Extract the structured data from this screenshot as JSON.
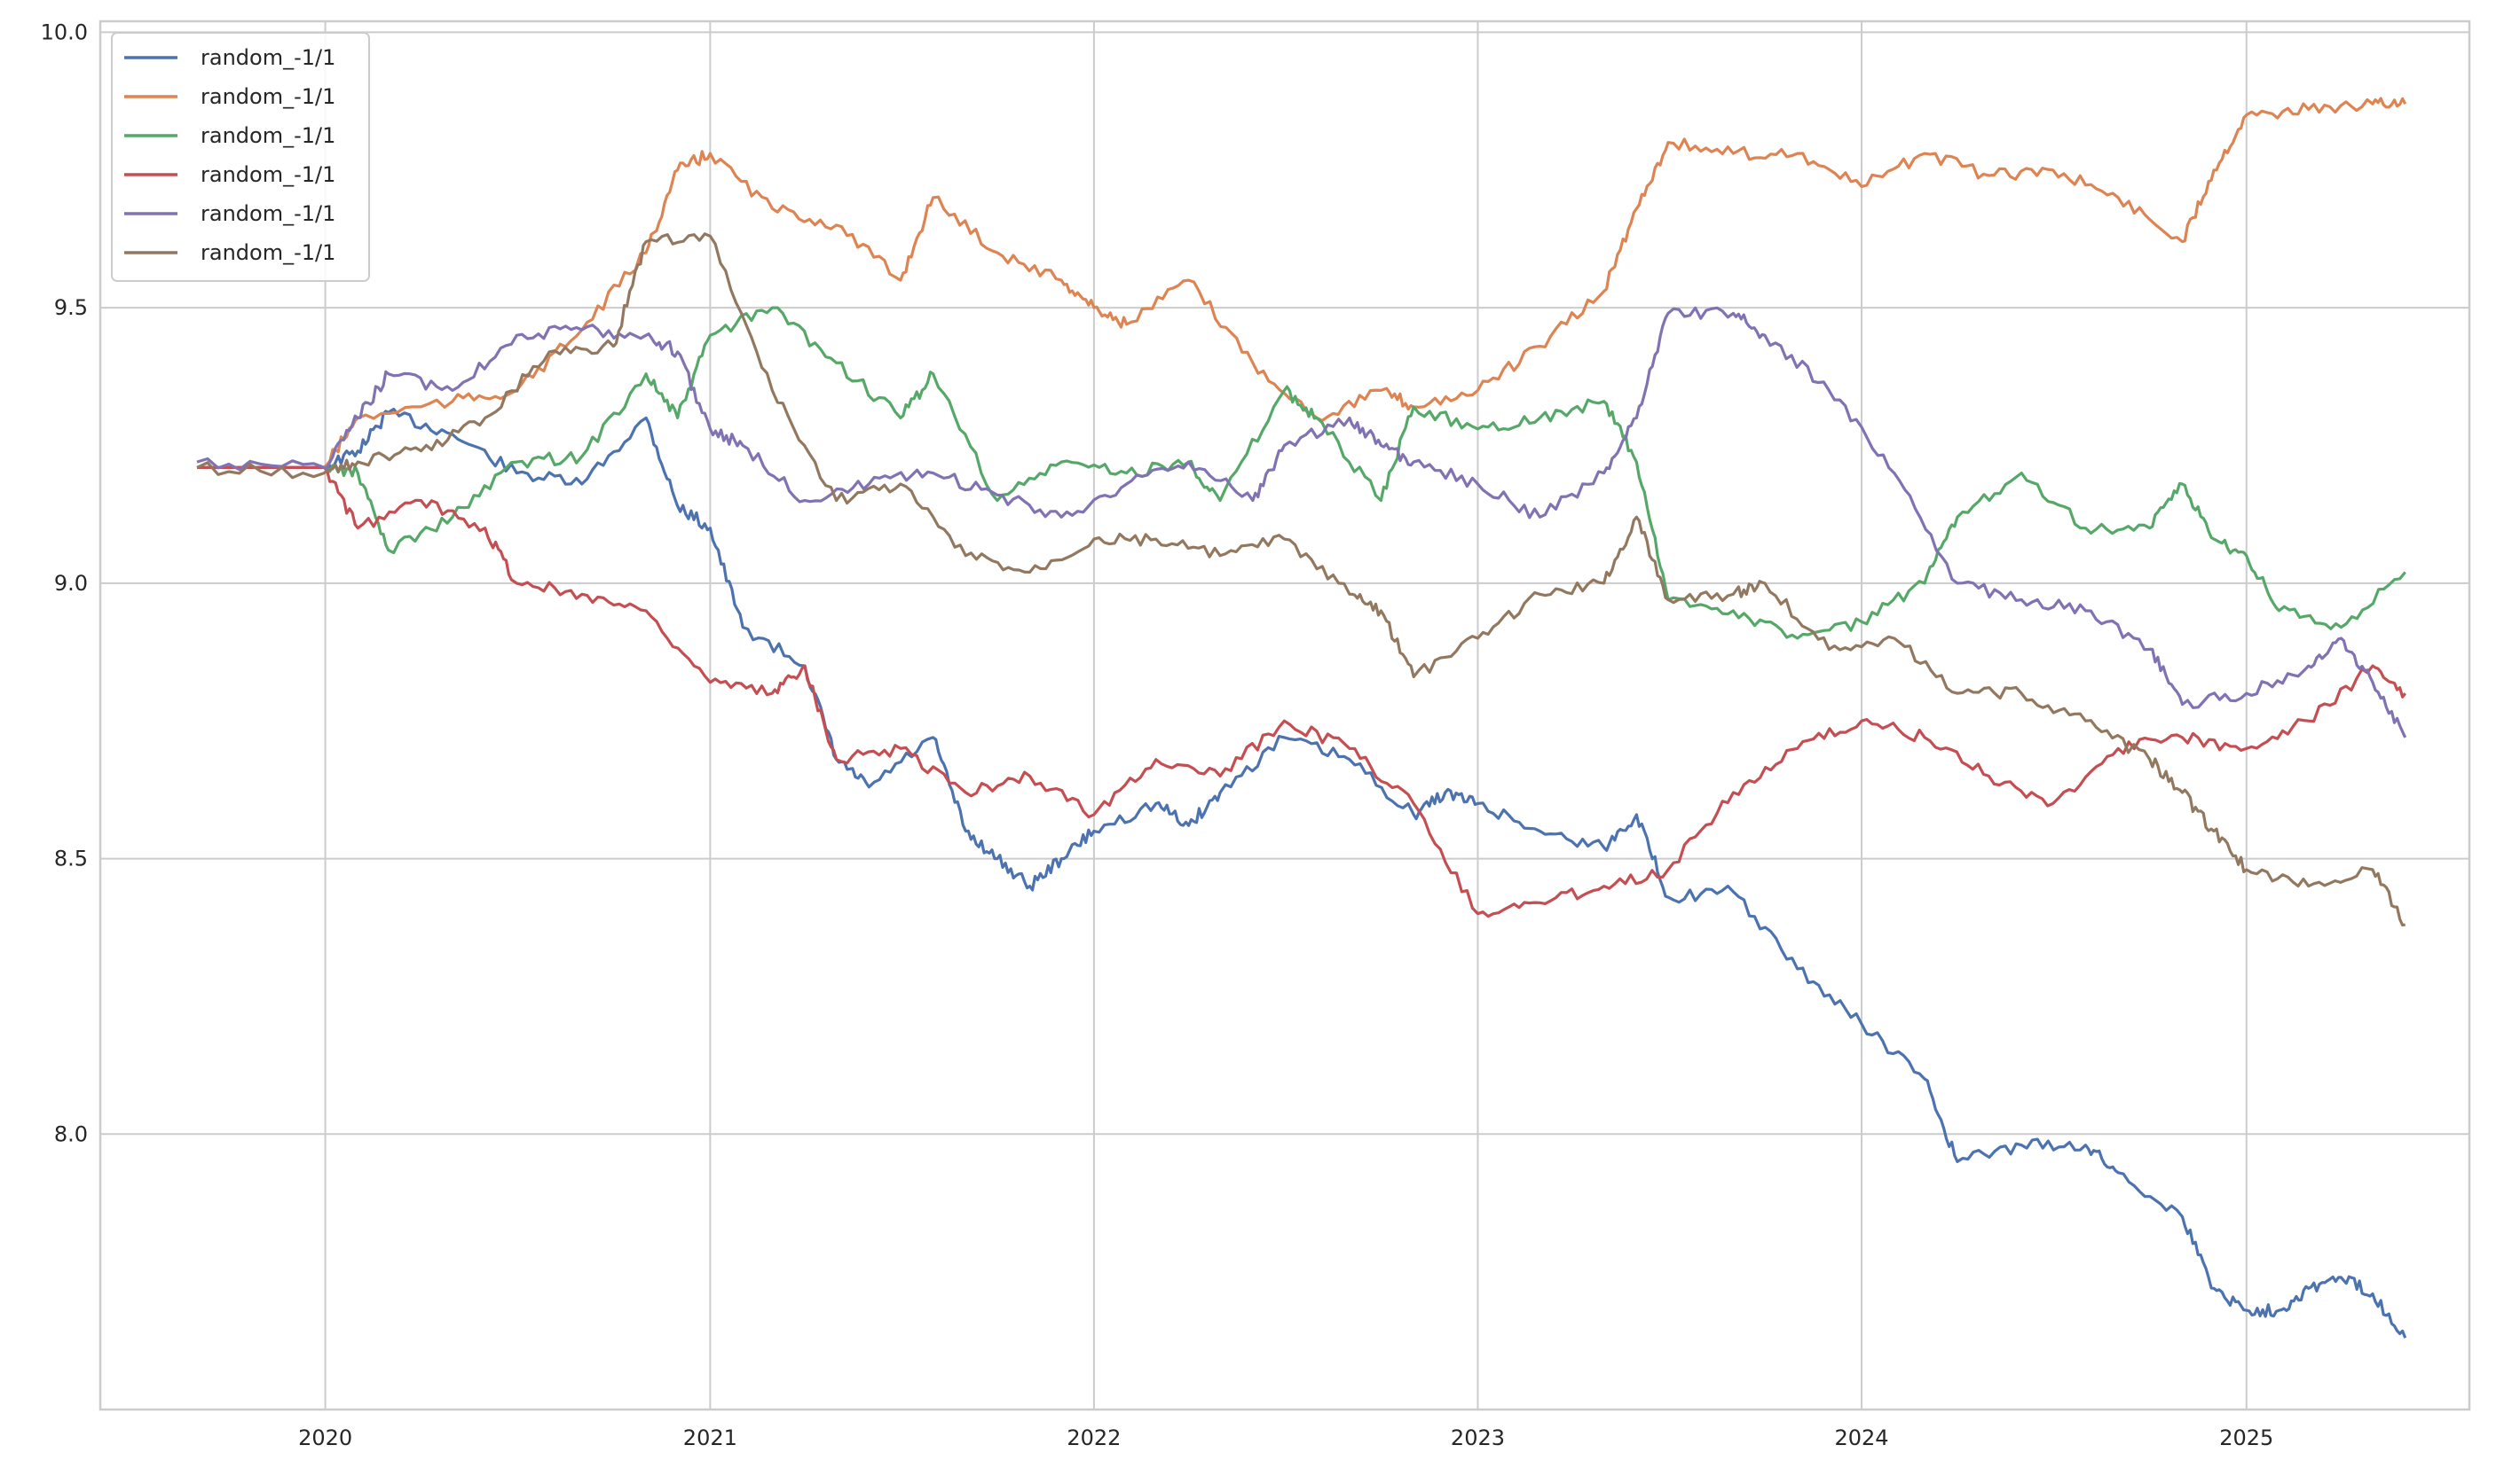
{
  "chart_data": {
    "type": "line",
    "title": "",
    "xlabel": "",
    "ylabel": "",
    "x_range": [
      "2019-06-01",
      "2025-08-01"
    ],
    "ylim": [
      7.5,
      10.02
    ],
    "x_ticks": [
      "2020",
      "2021",
      "2022",
      "2023",
      "2024",
      "2025"
    ],
    "y_ticks": [
      "8.0",
      "8.5",
      "9.0",
      "9.5",
      "10.0"
    ],
    "grid": true,
    "legend_position": "top-left",
    "series": [
      {
        "name": "random_-1/1",
        "color": "#4c72b0",
        "points": [
          [
            "2019-09-01",
            9.21
          ],
          [
            "2019-12-31",
            9.21
          ],
          [
            "2020-02-01",
            9.24
          ],
          [
            "2020-03-01",
            9.31
          ],
          [
            "2020-05-01",
            9.27
          ],
          [
            "2020-07-01",
            9.2
          ],
          [
            "2020-09-01",
            9.18
          ],
          [
            "2020-11-01",
            9.3
          ],
          [
            "2020-12-01",
            9.14
          ],
          [
            "2021-01-01",
            9.1
          ],
          [
            "2021-02-01",
            8.92
          ],
          [
            "2021-04-01",
            8.85
          ],
          [
            "2021-05-01",
            8.68
          ],
          [
            "2021-06-01",
            8.63
          ],
          [
            "2021-08-01",
            8.72
          ],
          [
            "2021-09-01",
            8.55
          ],
          [
            "2021-10-01",
            8.5
          ],
          [
            "2021-11-01",
            8.45
          ],
          [
            "2021-12-01",
            8.5
          ],
          [
            "2022-01-01",
            8.55
          ],
          [
            "2022-03-01",
            8.6
          ],
          [
            "2022-04-01",
            8.56
          ],
          [
            "2022-05-01",
            8.62
          ],
          [
            "2022-07-01",
            8.72
          ],
          [
            "2022-09-01",
            8.68
          ],
          [
            "2022-11-01",
            8.58
          ],
          [
            "2022-12-01",
            8.62
          ],
          [
            "2023-01-01",
            8.6
          ],
          [
            "2023-03-01",
            8.55
          ],
          [
            "2023-05-01",
            8.52
          ],
          [
            "2023-06-01",
            8.58
          ],
          [
            "2023-07-01",
            8.43
          ],
          [
            "2023-09-01",
            8.44
          ],
          [
            "2023-11-01",
            8.3
          ],
          [
            "2024-01-01",
            8.2
          ],
          [
            "2024-03-01",
            8.1
          ],
          [
            "2024-04-01",
            7.95
          ],
          [
            "2024-06-01",
            7.98
          ],
          [
            "2024-08-01",
            7.98
          ],
          [
            "2024-09-01",
            7.93
          ],
          [
            "2024-11-01",
            7.85
          ],
          [
            "2024-12-01",
            7.72
          ],
          [
            "2025-01-01",
            7.68
          ],
          [
            "2025-02-01",
            7.68
          ],
          [
            "2025-03-01",
            7.72
          ],
          [
            "2025-04-01",
            7.74
          ],
          [
            "2025-05-01",
            7.71
          ],
          [
            "2025-06-01",
            7.63
          ]
        ]
      },
      {
        "name": "random_-1/1",
        "color": "#dd8452",
        "points": [
          [
            "2019-09-01",
            9.21
          ],
          [
            "2019-12-31",
            9.21
          ],
          [
            "2020-02-01",
            9.3
          ],
          [
            "2020-05-01",
            9.33
          ],
          [
            "2020-07-01",
            9.35
          ],
          [
            "2020-09-01",
            9.46
          ],
          [
            "2020-11-01",
            9.6
          ],
          [
            "2020-12-01",
            9.75
          ],
          [
            "2021-01-01",
            9.78
          ],
          [
            "2021-03-01",
            9.68
          ],
          [
            "2021-05-01",
            9.65
          ],
          [
            "2021-07-01",
            9.55
          ],
          [
            "2021-08-01",
            9.7
          ],
          [
            "2021-10-01",
            9.6
          ],
          [
            "2021-12-01",
            9.55
          ],
          [
            "2022-01-01",
            9.5
          ],
          [
            "2022-02-01",
            9.47
          ],
          [
            "2022-04-01",
            9.55
          ],
          [
            "2022-06-01",
            9.4
          ],
          [
            "2022-08-01",
            9.3
          ],
          [
            "2022-10-01",
            9.35
          ],
          [
            "2022-11-01",
            9.32
          ],
          [
            "2023-01-01",
            9.35
          ],
          [
            "2023-03-01",
            9.43
          ],
          [
            "2023-05-01",
            9.53
          ],
          [
            "2023-06-01",
            9.68
          ],
          [
            "2023-07-01",
            9.8
          ],
          [
            "2023-09-01",
            9.78
          ],
          [
            "2023-11-01",
            9.78
          ],
          [
            "2024-01-01",
            9.72
          ],
          [
            "2024-03-01",
            9.78
          ],
          [
            "2024-05-01",
            9.74
          ],
          [
            "2024-07-01",
            9.75
          ],
          [
            "2024-09-01",
            9.7
          ],
          [
            "2024-11-01",
            9.62
          ],
          [
            "2024-12-01",
            9.75
          ],
          [
            "2025-01-01",
            9.85
          ],
          [
            "2025-03-01",
            9.86
          ],
          [
            "2025-05-01",
            9.87
          ],
          [
            "2025-06-01",
            9.87
          ]
        ]
      },
      {
        "name": "random_-1/1",
        "color": "#55a868",
        "points": [
          [
            "2019-09-01",
            9.21
          ],
          [
            "2019-12-31",
            9.21
          ],
          [
            "2020-02-01",
            9.2
          ],
          [
            "2020-03-01",
            9.06
          ],
          [
            "2020-05-01",
            9.12
          ],
          [
            "2020-07-01",
            9.22
          ],
          [
            "2020-09-01",
            9.23
          ],
          [
            "2020-11-01",
            9.38
          ],
          [
            "2020-12-01",
            9.3
          ],
          [
            "2021-01-01",
            9.45
          ],
          [
            "2021-03-01",
            9.5
          ],
          [
            "2021-05-01",
            9.4
          ],
          [
            "2021-07-01",
            9.3
          ],
          [
            "2021-08-01",
            9.38
          ],
          [
            "2021-10-01",
            9.15
          ],
          [
            "2021-12-01",
            9.22
          ],
          [
            "2022-02-01",
            9.2
          ],
          [
            "2022-04-01",
            9.22
          ],
          [
            "2022-05-01",
            9.15
          ],
          [
            "2022-07-01",
            9.35
          ],
          [
            "2022-08-01",
            9.3
          ],
          [
            "2022-10-01",
            9.15
          ],
          [
            "2022-11-01",
            9.32
          ],
          [
            "2023-01-01",
            9.28
          ],
          [
            "2023-03-01",
            9.3
          ],
          [
            "2023-05-01",
            9.33
          ],
          [
            "2023-06-01",
            9.22
          ],
          [
            "2023-07-01",
            8.97
          ],
          [
            "2023-09-01",
            8.95
          ],
          [
            "2023-11-01",
            8.9
          ],
          [
            "2024-01-01",
            8.93
          ],
          [
            "2024-03-01",
            9.0
          ],
          [
            "2024-04-01",
            9.12
          ],
          [
            "2024-06-01",
            9.2
          ],
          [
            "2024-08-01",
            9.1
          ],
          [
            "2024-10-01",
            9.1
          ],
          [
            "2024-11-01",
            9.18
          ],
          [
            "2024-12-01",
            9.08
          ],
          [
            "2025-01-01",
            9.05
          ],
          [
            "2025-02-01",
            8.95
          ],
          [
            "2025-04-01",
            8.92
          ],
          [
            "2025-06-01",
            9.02
          ]
        ]
      },
      {
        "name": "random_-1/1",
        "color": "#c44e52",
        "points": [
          [
            "2019-09-01",
            9.21
          ],
          [
            "2019-12-31",
            9.21
          ],
          [
            "2020-02-01",
            9.1
          ],
          [
            "2020-04-01",
            9.15
          ],
          [
            "2020-06-01",
            9.1
          ],
          [
            "2020-07-01",
            9.0
          ],
          [
            "2020-09-01",
            8.98
          ],
          [
            "2020-11-01",
            8.95
          ],
          [
            "2021-01-01",
            8.82
          ],
          [
            "2021-03-01",
            8.8
          ],
          [
            "2021-04-01",
            8.85
          ],
          [
            "2021-05-01",
            8.68
          ],
          [
            "2021-07-01",
            8.7
          ],
          [
            "2021-09-01",
            8.62
          ],
          [
            "2021-11-01",
            8.65
          ],
          [
            "2022-01-01",
            8.58
          ],
          [
            "2022-03-01",
            8.68
          ],
          [
            "2022-05-01",
            8.65
          ],
          [
            "2022-07-01",
            8.75
          ],
          [
            "2022-09-01",
            8.7
          ],
          [
            "2022-11-01",
            8.6
          ],
          [
            "2023-01-01",
            8.4
          ],
          [
            "2023-03-01",
            8.42
          ],
          [
            "2023-05-01",
            8.45
          ],
          [
            "2023-07-01",
            8.48
          ],
          [
            "2023-09-01",
            8.62
          ],
          [
            "2023-11-01",
            8.7
          ],
          [
            "2024-01-01",
            8.75
          ],
          [
            "2024-03-01",
            8.72
          ],
          [
            "2024-05-01",
            8.65
          ],
          [
            "2024-07-01",
            8.6
          ],
          [
            "2024-09-01",
            8.7
          ],
          [
            "2024-11-01",
            8.72
          ],
          [
            "2025-01-01",
            8.7
          ],
          [
            "2025-03-01",
            8.75
          ],
          [
            "2025-05-01",
            8.85
          ],
          [
            "2025-06-01",
            8.8
          ]
        ]
      },
      {
        "name": "random_-1/1",
        "color": "#8172b3",
        "points": [
          [
            "2019-09-01",
            9.22
          ],
          [
            "2019-12-31",
            9.21
          ],
          [
            "2020-02-01",
            9.3
          ],
          [
            "2020-03-01",
            9.38
          ],
          [
            "2020-05-01",
            9.35
          ],
          [
            "2020-07-01",
            9.45
          ],
          [
            "2020-09-01",
            9.46
          ],
          [
            "2020-11-01",
            9.45
          ],
          [
            "2020-12-01",
            9.42
          ],
          [
            "2021-01-01",
            9.28
          ],
          [
            "2021-02-01",
            9.25
          ],
          [
            "2021-04-01",
            9.15
          ],
          [
            "2021-06-01",
            9.18
          ],
          [
            "2021-08-01",
            9.2
          ],
          [
            "2021-10-01",
            9.16
          ],
          [
            "2021-12-01",
            9.12
          ],
          [
            "2022-02-01",
            9.18
          ],
          [
            "2022-04-01",
            9.22
          ],
          [
            "2022-06-01",
            9.15
          ],
          [
            "2022-07-01",
            9.25
          ],
          [
            "2022-09-01",
            9.3
          ],
          [
            "2022-10-01",
            9.25
          ],
          [
            "2022-11-01",
            9.22
          ],
          [
            "2023-01-01",
            9.18
          ],
          [
            "2023-03-01",
            9.12
          ],
          [
            "2023-05-01",
            9.2
          ],
          [
            "2023-06-01",
            9.3
          ],
          [
            "2023-07-01",
            9.49
          ],
          [
            "2023-09-01",
            9.49
          ],
          [
            "2023-10-01",
            9.45
          ],
          [
            "2023-12-01",
            9.35
          ],
          [
            "2024-02-01",
            9.2
          ],
          [
            "2024-04-01",
            9.0
          ],
          [
            "2024-06-01",
            8.97
          ],
          [
            "2024-08-01",
            8.95
          ],
          [
            "2024-10-01",
            8.88
          ],
          [
            "2024-11-01",
            8.78
          ],
          [
            "2025-01-01",
            8.8
          ],
          [
            "2025-03-01",
            8.85
          ],
          [
            "2025-04-01",
            8.9
          ],
          [
            "2025-05-01",
            8.82
          ],
          [
            "2025-06-01",
            8.72
          ]
        ]
      },
      {
        "name": "random_-1/1",
        "color": "#937860",
        "points": [
          [
            "2019-09-01",
            9.21
          ],
          [
            "2019-12-31",
            9.2
          ],
          [
            "2020-02-01",
            9.22
          ],
          [
            "2020-04-01",
            9.24
          ],
          [
            "2020-06-01",
            9.3
          ],
          [
            "2020-08-01",
            9.42
          ],
          [
            "2020-10-01",
            9.43
          ],
          [
            "2020-11-01",
            9.62
          ],
          [
            "2021-01-01",
            9.63
          ],
          [
            "2021-03-01",
            9.35
          ],
          [
            "2021-05-01",
            9.15
          ],
          [
            "2021-07-01",
            9.18
          ],
          [
            "2021-09-01",
            9.05
          ],
          [
            "2021-11-01",
            9.02
          ],
          [
            "2022-01-01",
            9.08
          ],
          [
            "2022-03-01",
            9.08
          ],
          [
            "2022-05-01",
            9.05
          ],
          [
            "2022-07-01",
            9.08
          ],
          [
            "2022-09-01",
            8.98
          ],
          [
            "2022-10-01",
            8.95
          ],
          [
            "2022-11-01",
            8.83
          ],
          [
            "2023-01-01",
            8.9
          ],
          [
            "2023-03-01",
            8.98
          ],
          [
            "2023-05-01",
            9.0
          ],
          [
            "2023-06-01",
            9.12
          ],
          [
            "2023-07-01",
            8.97
          ],
          [
            "2023-09-01",
            8.98
          ],
          [
            "2023-10-01",
            9.0
          ],
          [
            "2023-12-01",
            8.88
          ],
          [
            "2024-02-01",
            8.9
          ],
          [
            "2024-04-01",
            8.8
          ],
          [
            "2024-06-01",
            8.8
          ],
          [
            "2024-08-01",
            8.75
          ],
          [
            "2024-10-01",
            8.68
          ],
          [
            "2024-11-01",
            8.62
          ],
          [
            "2024-12-01",
            8.55
          ],
          [
            "2025-01-01",
            8.48
          ],
          [
            "2025-03-01",
            8.45
          ],
          [
            "2025-05-01",
            8.48
          ],
          [
            "2025-06-01",
            8.38
          ]
        ]
      }
    ]
  }
}
